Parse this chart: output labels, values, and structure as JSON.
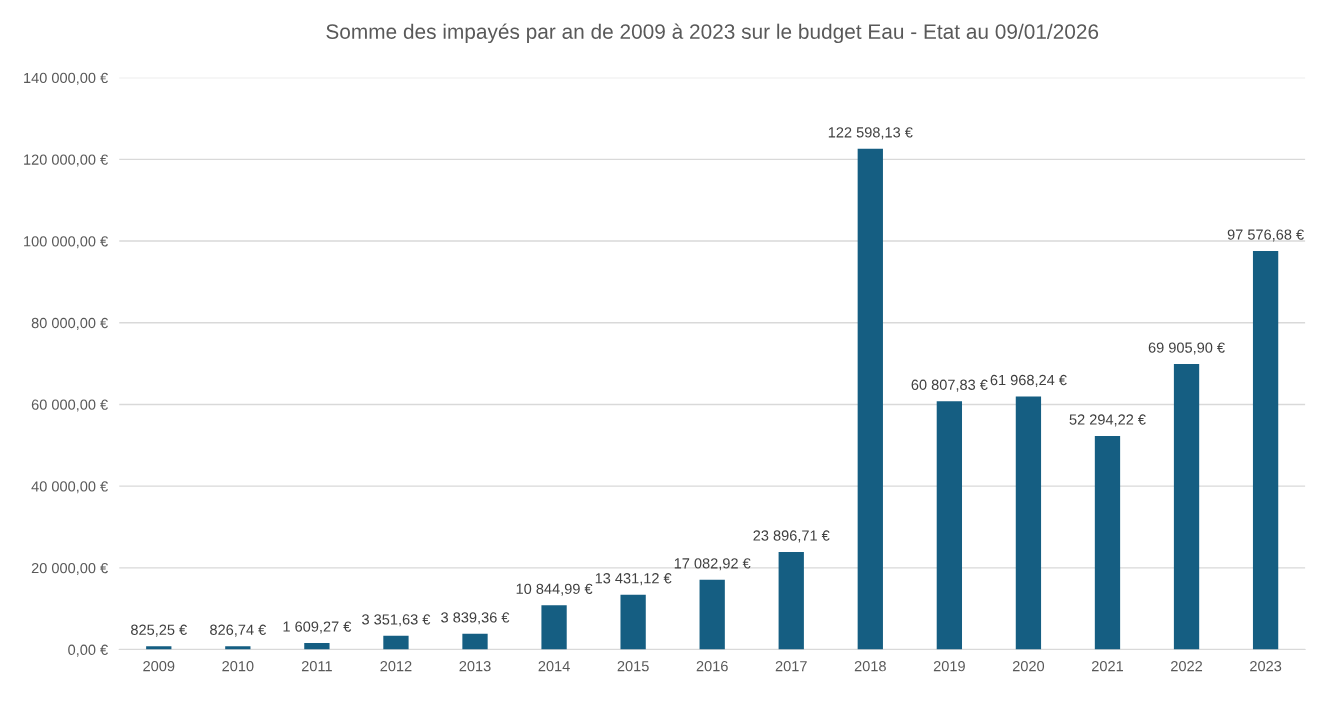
{
  "chart_data": {
    "type": "bar",
    "title": "Somme des impayés par an de 2009 à 2023 sur le budget Eau - Etat au 09/01/2026",
    "categories": [
      "2009",
      "2010",
      "2011",
      "2012",
      "2013",
      "2014",
      "2015",
      "2016",
      "2017",
      "2018",
      "2019",
      "2020",
      "2021",
      "2022",
      "2023"
    ],
    "values": [
      825.25,
      826.74,
      1609.27,
      3351.63,
      3839.36,
      10844.99,
      13431.12,
      17082.92,
      23896.71,
      122598.13,
      60807.83,
      61968.24,
      52294.22,
      69905.9,
      97576.68
    ],
    "value_labels": [
      "825,25 €",
      "826,74 €",
      "1 609,27 €",
      "3 351,63 €",
      "3 839,36 €",
      "10 844,99 €",
      "13 431,12 €",
      "17 082,92 €",
      "23 896,71 €",
      "122 598,13 €",
      "60 807,83 €",
      "61 968,24 €",
      "52 294,22 €",
      "69 905,90 €",
      "97 576,68 €"
    ],
    "color": "#155e82",
    "ylim": [
      0,
      140000
    ],
    "yticks": [
      {
        "value": 0,
        "label": "0,00 €"
      },
      {
        "value": 20000,
        "label": "20 000,00 €"
      },
      {
        "value": 40000,
        "label": "40 000,00 €"
      },
      {
        "value": 60000,
        "label": "60 000,00 €"
      },
      {
        "value": 80000,
        "label": "80 000,00 €"
      },
      {
        "value": 100000,
        "label": "100 000,00 €"
      },
      {
        "value": 120000,
        "label": "120 000,00 €"
      },
      {
        "value": 140000,
        "label": "140 000,00 €"
      }
    ],
    "grid": "y"
  }
}
